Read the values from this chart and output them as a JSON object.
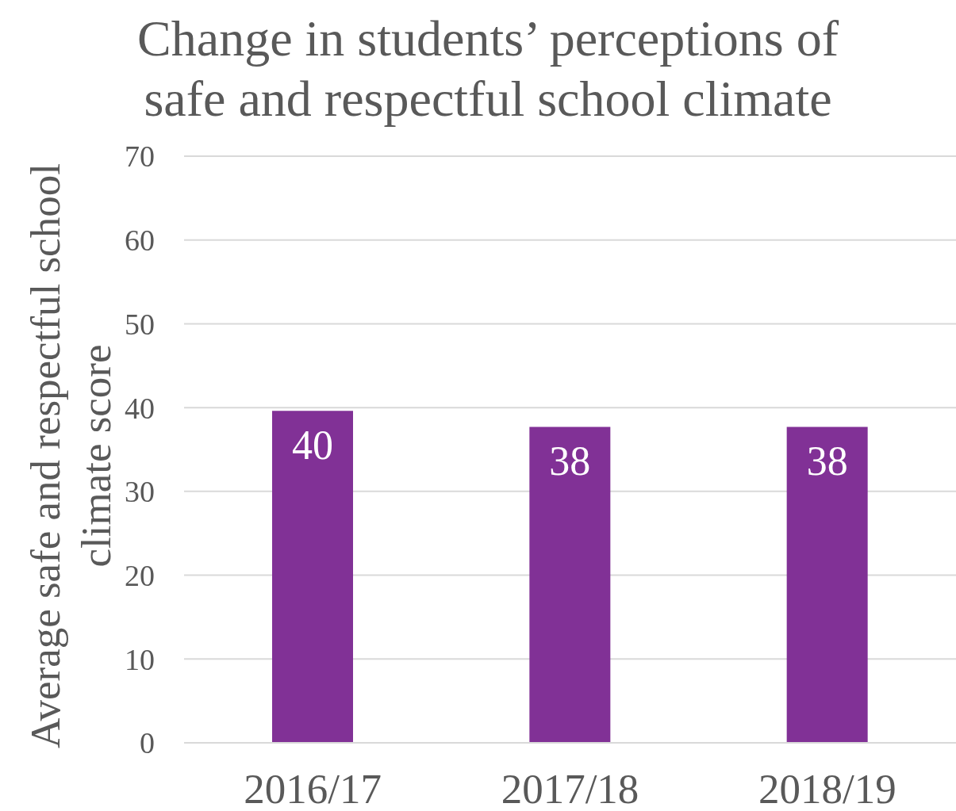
{
  "chart_data": {
    "type": "bar",
    "title": "Change in students’ perceptions of safe and respectful school climate",
    "ylabel": "Average safe and respectful school climate score",
    "categories": [
      "2016/17",
      "2017/18",
      "2018/19"
    ],
    "values": [
      39.6,
      37.7,
      37.7
    ],
    "value_labels": [
      "40",
      "38",
      "38"
    ],
    "color": "#813196",
    "ylim": [
      0,
      70
    ],
    "yticks": [
      0,
      10,
      20,
      30,
      40,
      50,
      60,
      70
    ],
    "grid": "y"
  }
}
